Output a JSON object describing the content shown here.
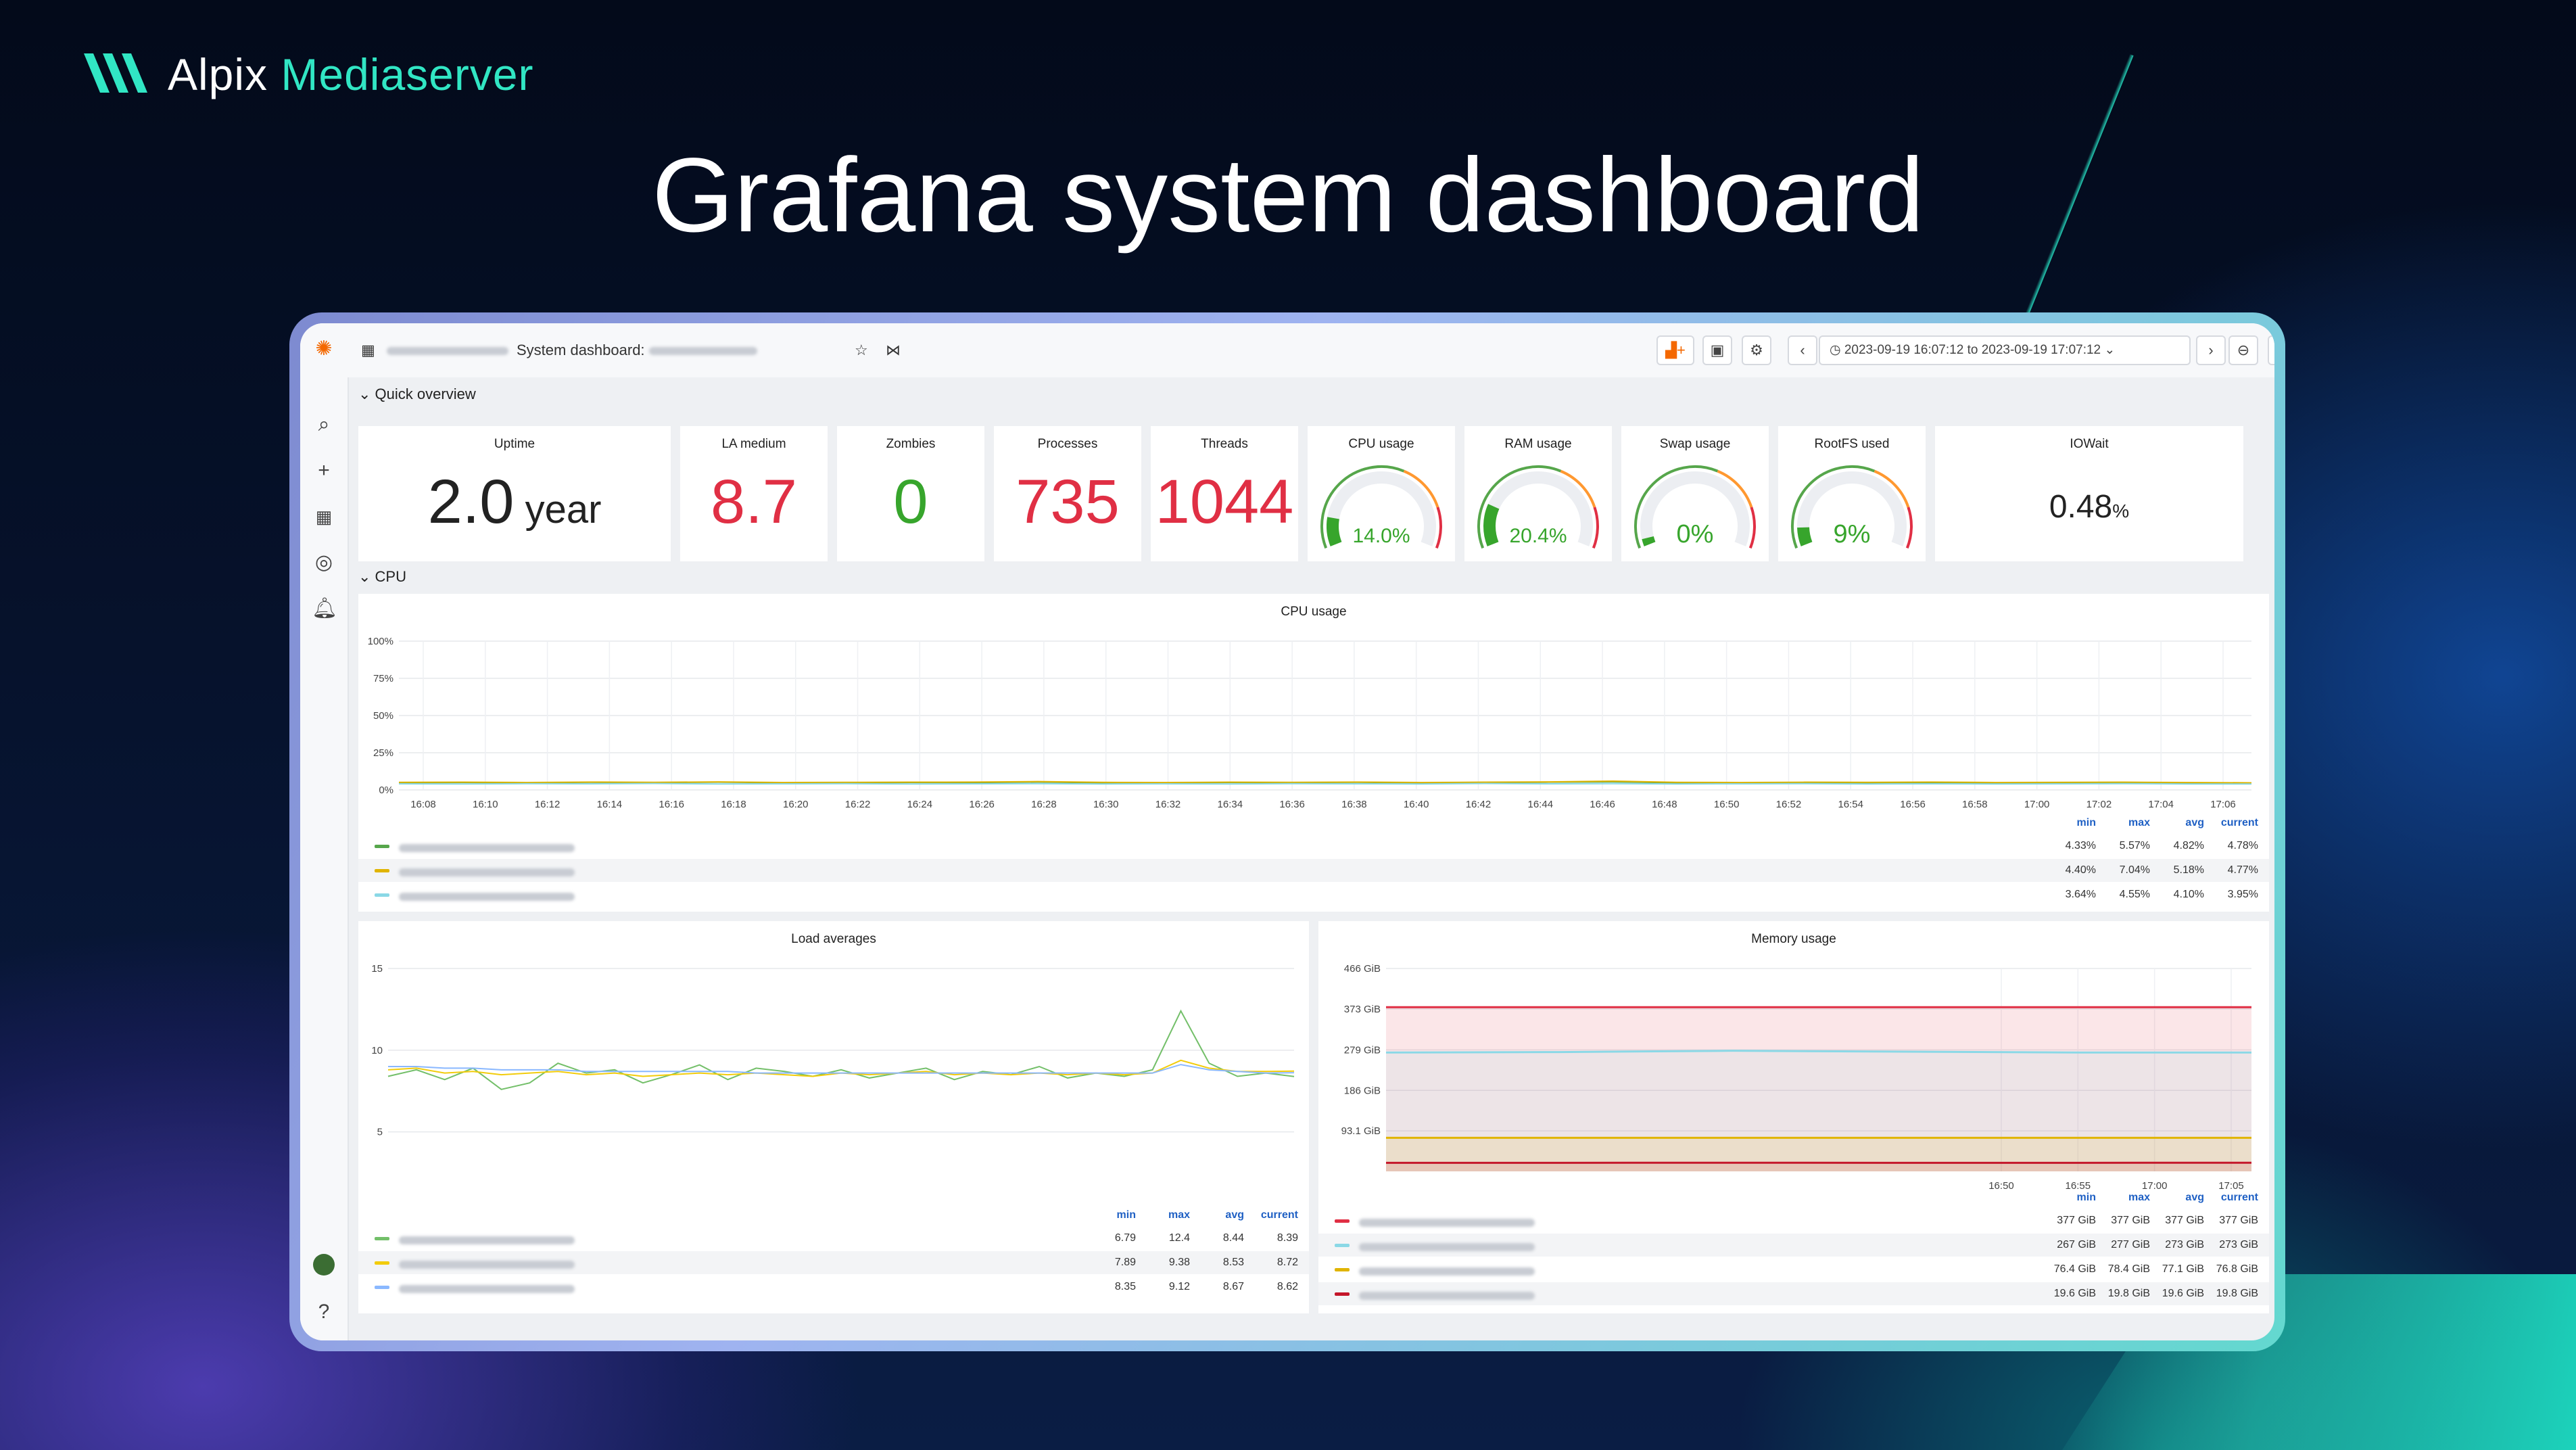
{
  "brand": {
    "name_prefix": "Alpix",
    "name_accent": "Mediaserver"
  },
  "headline": "Grafana system dashboard",
  "topbar": {
    "dashboard_title": "System dashboard: ",
    "time_range": "2023-09-19 16:07:12 to 2023-09-19 17:07:12"
  },
  "sections": {
    "quick": "Quick overview",
    "cpu": "CPU"
  },
  "stats": [
    {
      "title": "Uptime",
      "value": "2.0",
      "unit": "year",
      "color": "#222222"
    },
    {
      "title": "LA medium",
      "value": "8.7",
      "color": "#e02f44"
    },
    {
      "title": "Zombies",
      "value": "0",
      "color": "#37a52c"
    },
    {
      "title": "Processes",
      "value": "735",
      "color": "#e02f44"
    },
    {
      "title": "Threads",
      "value": "1044",
      "color": "#e02f44"
    }
  ],
  "gauges": [
    {
      "title": "CPU usage",
      "label": "14.0%",
      "value": 14.0
    },
    {
      "title": "RAM usage",
      "label": "20.4%",
      "value": 20.4
    },
    {
      "title": "Swap usage",
      "label": "0%",
      "value": 0
    },
    {
      "title": "RootFS used",
      "label": "9%",
      "value": 9
    }
  ],
  "iowait": {
    "title": "IOWait",
    "value": "0.48",
    "unit": "%"
  },
  "legend_headers": [
    "min",
    "max",
    "avg",
    "current"
  ],
  "chart_data": [
    {
      "type": "line",
      "title": "CPU usage",
      "y_ticks": [
        "100%",
        "75%",
        "50%",
        "25%",
        "0%"
      ],
      "ylim": [
        0,
        100
      ],
      "x": [
        "16:08",
        "16:10",
        "16:12",
        "16:14",
        "16:16",
        "16:18",
        "16:20",
        "16:22",
        "16:24",
        "16:26",
        "16:28",
        "16:30",
        "16:32",
        "16:34",
        "16:36",
        "16:38",
        "16:40",
        "16:42",
        "16:44",
        "16:46",
        "16:48",
        "16:50",
        "16:52",
        "16:54",
        "16:56",
        "16:58",
        "17:00",
        "17:02",
        "17:04",
        "17:06"
      ],
      "series": [
        {
          "color": "#56a64b",
          "values": [
            4.8,
            5.0,
            4.7,
            5.1,
            4.9,
            5.2,
            4.8,
            4.6,
            5.0,
            4.9,
            5.3,
            4.8,
            4.7,
            5.0,
            4.9,
            5.1,
            4.8,
            4.9,
            5.2,
            5.4,
            4.8,
            4.7,
            4.9,
            4.8,
            5.0,
            4.7,
            4.8,
            4.9,
            4.7,
            4.8
          ],
          "min": "4.33%",
          "max": "5.57%",
          "avg": "4.82%",
          "current": "4.78%"
        },
        {
          "color": "#e0b400",
          "values": [
            5.1,
            5.2,
            5.0,
            5.3,
            5.1,
            5.4,
            5.0,
            5.1,
            5.2,
            5.3,
            5.6,
            5.1,
            5.0,
            5.2,
            5.1,
            5.3,
            5.0,
            5.2,
            5.4,
            5.9,
            5.1,
            5.0,
            5.2,
            5.1,
            5.3,
            5.0,
            5.1,
            5.2,
            5.0,
            4.8
          ],
          "min": "4.40%",
          "max": "7.04%",
          "avg": "5.18%",
          "current": "4.77%"
        },
        {
          "color": "#8ad8e6",
          "values": [
            4.1,
            4.0,
            4.2,
            4.1,
            4.3,
            4.0,
            4.1,
            4.2,
            4.0,
            4.1,
            4.2,
            4.0,
            4.1,
            4.0,
            4.2,
            4.1,
            4.0,
            4.3,
            4.1,
            4.2,
            4.0,
            4.1,
            4.2,
            4.0,
            4.1,
            4.0,
            4.1,
            4.2,
            4.0,
            3.95
          ],
          "min": "3.64%",
          "max": "4.55%",
          "avg": "4.10%",
          "current": "3.95%"
        }
      ]
    },
    {
      "type": "line",
      "title": "Load averages",
      "y_ticks": [
        "15",
        "10",
        "5"
      ],
      "ylim": [
        3,
        15
      ],
      "series": [
        {
          "color": "#73bf69",
          "values": [
            8.4,
            8.8,
            8.2,
            8.9,
            7.6,
            8.0,
            9.2,
            8.6,
            8.8,
            8.0,
            8.5,
            9.1,
            8.2,
            8.9,
            8.7,
            8.4,
            8.8,
            8.3,
            8.6,
            8.9,
            8.2,
            8.7,
            8.5,
            9.0,
            8.3,
            8.6,
            8.4,
            8.8,
            12.4,
            9.2,
            8.4,
            8.6,
            8.39
          ],
          "min": "6.79",
          "max": "12.4",
          "avg": "8.44",
          "current": "8.39"
        },
        {
          "color": "#f2cc0c",
          "values": [
            8.8,
            8.9,
            8.6,
            8.7,
            8.5,
            8.6,
            8.7,
            8.5,
            8.6,
            8.4,
            8.5,
            8.6,
            8.5,
            8.6,
            8.5,
            8.4,
            8.6,
            8.5,
            8.6,
            8.7,
            8.5,
            8.6,
            8.5,
            8.6,
            8.5,
            8.6,
            8.5,
            8.6,
            9.38,
            8.9,
            8.7,
            8.7,
            8.72
          ],
          "min": "7.89",
          "max": "9.38",
          "avg": "8.53",
          "current": "8.72"
        },
        {
          "color": "#8ab8ff",
          "values": [
            9.0,
            9.0,
            8.9,
            8.9,
            8.8,
            8.8,
            8.8,
            8.7,
            8.7,
            8.7,
            8.7,
            8.7,
            8.7,
            8.6,
            8.6,
            8.6,
            8.6,
            8.6,
            8.6,
            8.6,
            8.6,
            8.6,
            8.6,
            8.6,
            8.6,
            8.6,
            8.6,
            8.6,
            9.12,
            8.8,
            8.7,
            8.6,
            8.62
          ],
          "min": "8.35",
          "max": "9.12",
          "avg": "8.67",
          "current": "8.62"
        }
      ]
    },
    {
      "type": "area",
      "title": "Memory usage",
      "y_ticks": [
        "466 GiB",
        "373 GiB",
        "279 GiB",
        "186 GiB",
        "93.1 GiB"
      ],
      "x_ticks": [
        "16:50",
        "16:55",
        "17:00",
        "17:05"
      ],
      "ylim": [
        0,
        466
      ],
      "series": [
        {
          "color": "#e02f44",
          "values": [
            377,
            377,
            377,
            377,
            377,
            377
          ],
          "min": "377 GiB",
          "max": "377 GiB",
          "avg": "377 GiB",
          "current": "377 GiB"
        },
        {
          "color": "#8ad8e6",
          "values": [
            273,
            274,
            277,
            275,
            273,
            273
          ],
          "min": "267 GiB",
          "max": "277 GiB",
          "avg": "273 GiB",
          "current": "273 GiB"
        },
        {
          "color": "#e0b400",
          "values": [
            77,
            77,
            77,
            77,
            77,
            77
          ],
          "min": "76.4 GiB",
          "max": "78.4 GiB",
          "avg": "77.1 GiB",
          "current": "76.8 GiB"
        },
        {
          "color": "#c4162a",
          "values": [
            19.6,
            19.7,
            19.8,
            19.6,
            19.7,
            19.8
          ],
          "min": "19.6 GiB",
          "max": "19.8 GiB",
          "avg": "19.6 GiB",
          "current": "19.8 GiB"
        }
      ]
    }
  ]
}
